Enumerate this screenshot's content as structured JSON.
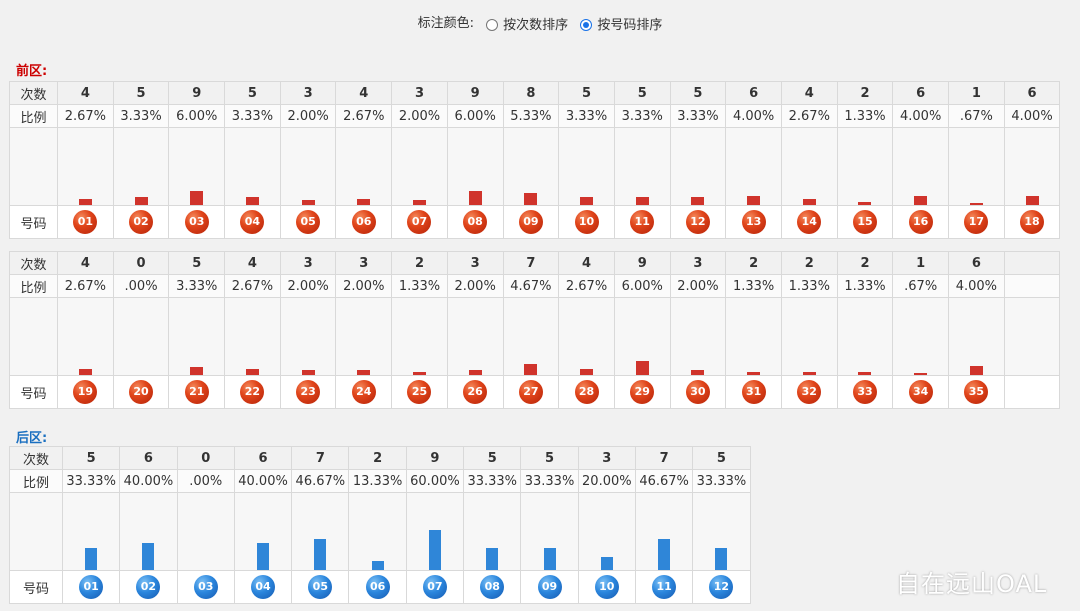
{
  "header": {
    "label": "标注颜色:",
    "options": [
      {
        "label": "按次数排序",
        "checked": false
      },
      {
        "label": "按号码排序",
        "checked": true
      }
    ]
  },
  "front": {
    "title": "前区:",
    "title_color": "#cc0000",
    "labels": {
      "count": "次数",
      "ratio": "比例",
      "number": "号码"
    }
  },
  "back": {
    "title": "后区:",
    "title_color": "#1a6fc0",
    "labels": {
      "count": "次数",
      "ratio": "比例",
      "number": "号码"
    }
  },
  "colors": {
    "front_bar": "#d0342c",
    "back_bar": "#2f86d8"
  },
  "watermark": "自在远山OAL",
  "chart_data": [
    {
      "type": "bar",
      "title": "前区",
      "categories": [
        "01",
        "02",
        "03",
        "04",
        "05",
        "06",
        "07",
        "08",
        "09",
        "10",
        "11",
        "12",
        "13",
        "14",
        "15",
        "16",
        "17",
        "18"
      ],
      "values": [
        4,
        5,
        9,
        5,
        3,
        4,
        3,
        9,
        8,
        5,
        5,
        5,
        6,
        4,
        2,
        6,
        1,
        6
      ],
      "ratios": [
        "2.67%",
        "3.33%",
        "6.00%",
        "3.33%",
        "2.00%",
        "2.67%",
        "2.00%",
        "6.00%",
        "5.33%",
        "3.33%",
        "3.33%",
        "3.33%",
        "4.00%",
        "2.67%",
        "1.33%",
        "4.00%",
        ".67%",
        "4.00%"
      ]
    },
    {
      "type": "bar",
      "title": "前区",
      "categories": [
        "19",
        "20",
        "21",
        "22",
        "23",
        "24",
        "25",
        "26",
        "27",
        "28",
        "29",
        "30",
        "31",
        "32",
        "33",
        "34",
        "35"
      ],
      "values": [
        4,
        0,
        5,
        4,
        3,
        3,
        2,
        3,
        7,
        4,
        9,
        3,
        2,
        2,
        2,
        1,
        6
      ],
      "ratios": [
        "2.67%",
        ".00%",
        "3.33%",
        "2.67%",
        "2.00%",
        "2.00%",
        "1.33%",
        "2.00%",
        "4.67%",
        "2.67%",
        "6.00%",
        "2.00%",
        "1.33%",
        "1.33%",
        "1.33%",
        ".67%",
        "4.00%"
      ]
    },
    {
      "type": "bar",
      "title": "后区",
      "categories": [
        "01",
        "02",
        "03",
        "04",
        "05",
        "06",
        "07",
        "08",
        "09",
        "10",
        "11",
        "12"
      ],
      "values": [
        5,
        6,
        0,
        6,
        7,
        2,
        9,
        5,
        5,
        3,
        7,
        5
      ],
      "ratios": [
        "33.33%",
        "40.00%",
        ".00%",
        "40.00%",
        "46.67%",
        "13.33%",
        "60.00%",
        "33.33%",
        "33.33%",
        "20.00%",
        "46.67%",
        "33.33%"
      ]
    }
  ]
}
